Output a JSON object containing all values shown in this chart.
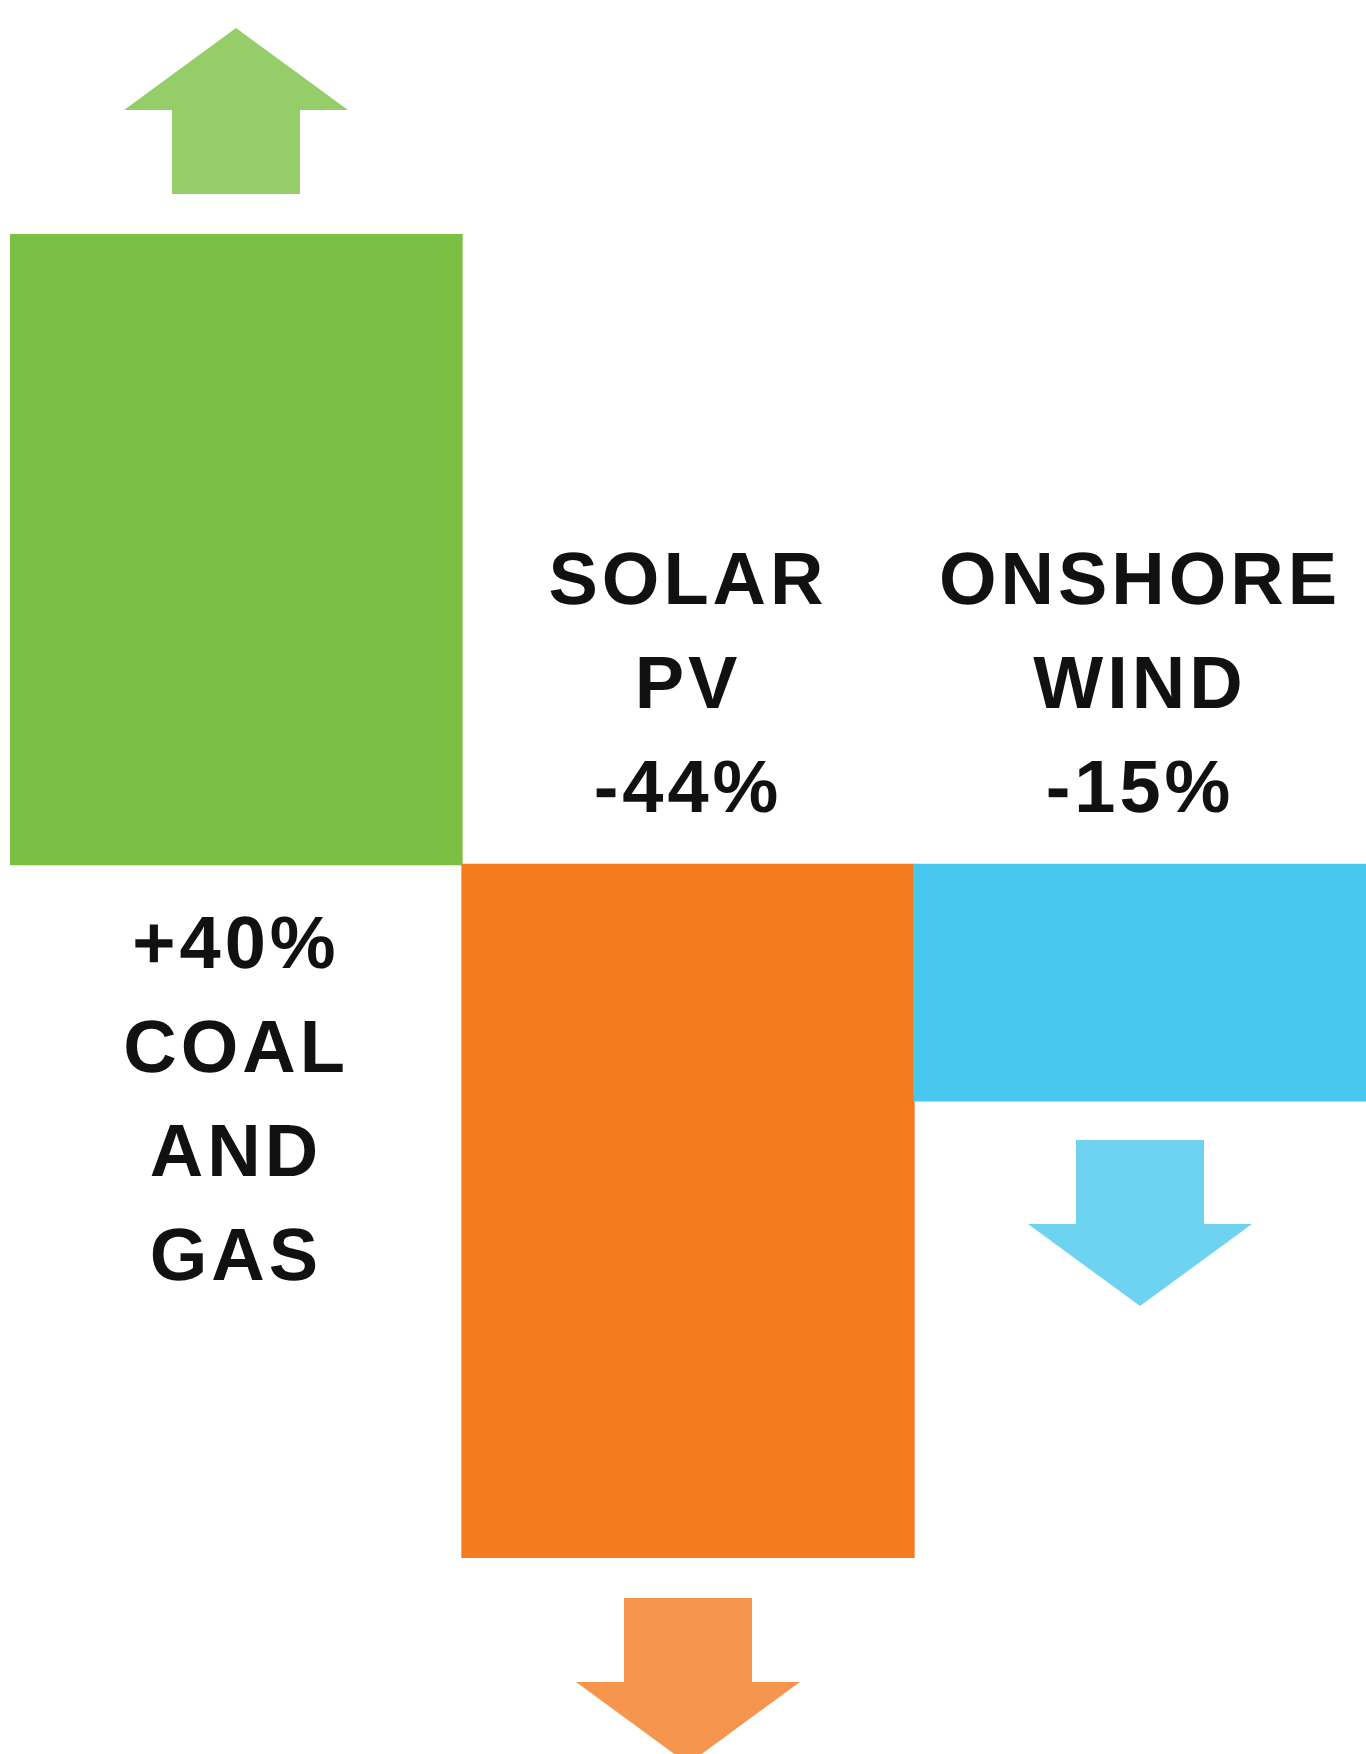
{
  "chart_data": {
    "type": "bar",
    "categories": [
      "COAL AND GAS",
      "SOLAR PV",
      "ONSHORE WIND"
    ],
    "values": [
      40,
      -44,
      -15
    ],
    "value_labels": [
      "+40%",
      "-44%",
      "-15%"
    ],
    "colors": [
      "#7bc043",
      "#f47b20",
      "#48c8ee"
    ]
  }
}
